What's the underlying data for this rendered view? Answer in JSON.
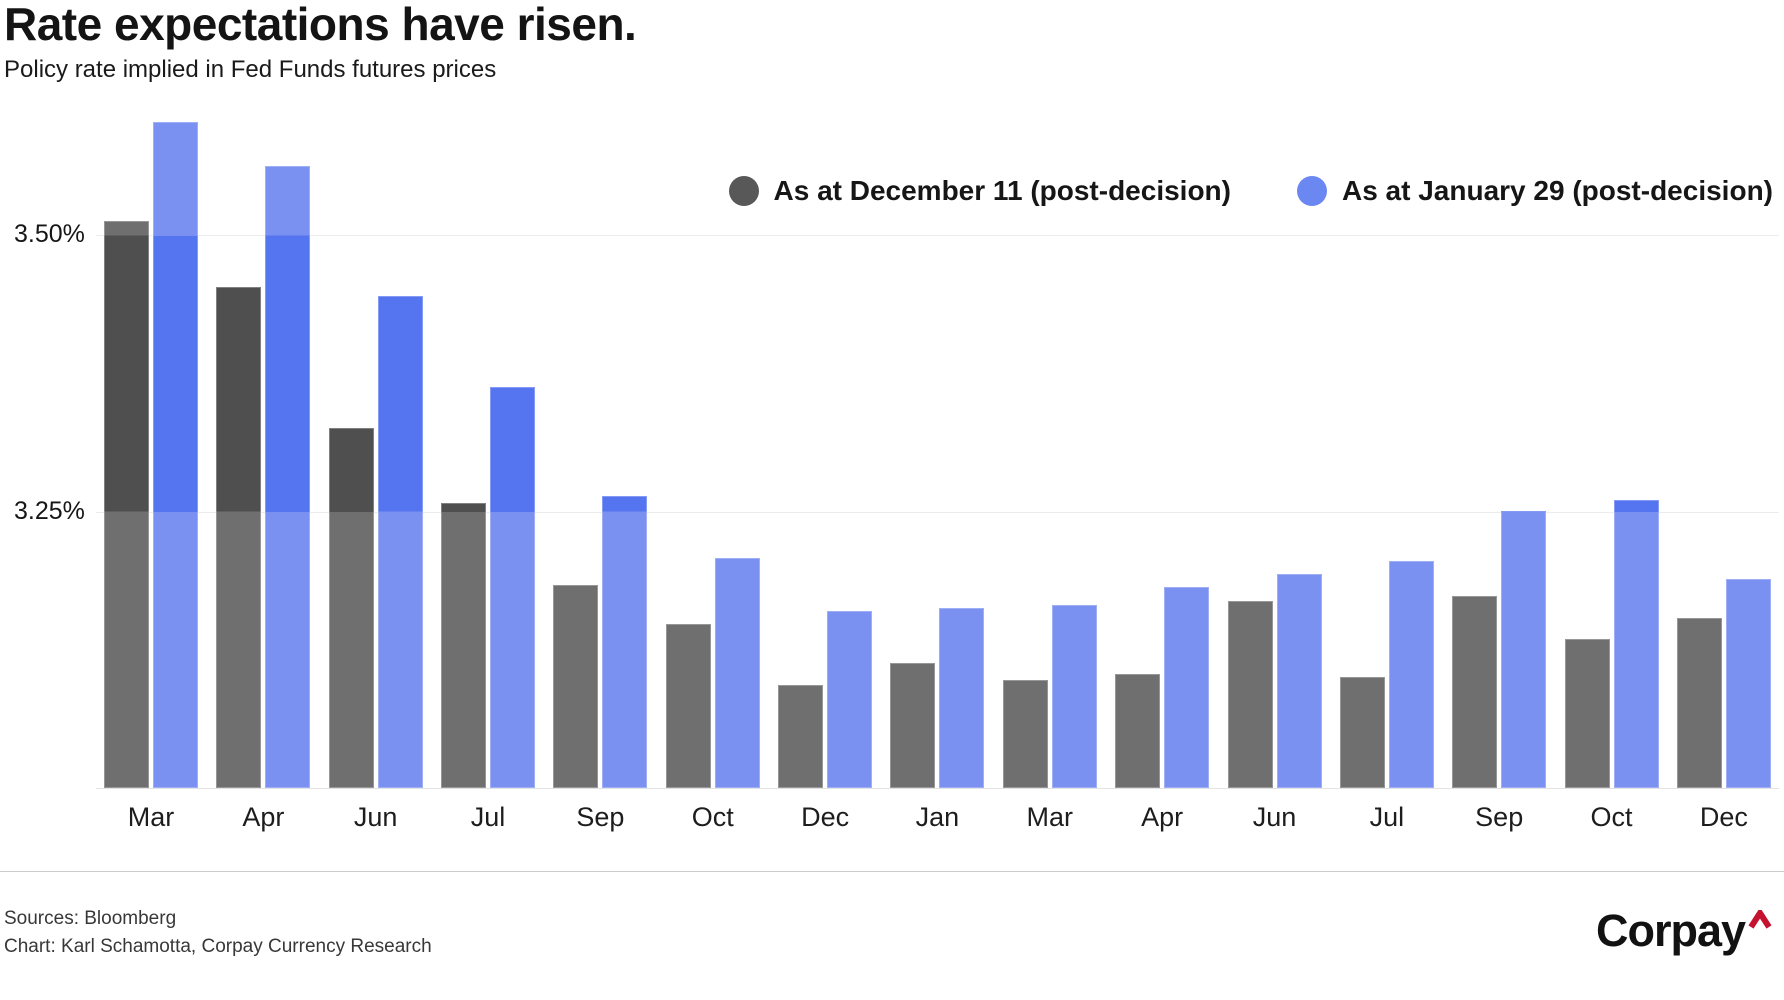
{
  "chart_data": {
    "type": "bar",
    "title": "Rate expectations have risen.",
    "subtitle": "Policy rate implied in Fed Funds futures prices",
    "categories": [
      "Mar",
      "Apr",
      "Jun",
      "Jul",
      "Sep",
      "Oct",
      "Dec",
      "Jan",
      "Mar",
      "Apr",
      "Jun",
      "Jul",
      "Sep",
      "Oct",
      "Dec"
    ],
    "series": [
      {
        "id": "dec11",
        "name": "As at December 11 (post-decision)",
        "values": [
          3.513,
          3.453,
          3.326,
          3.258,
          3.184,
          3.148,
          3.093,
          3.113,
          3.098,
          3.103,
          3.169,
          3.1,
          3.174,
          3.135,
          3.154
        ],
        "color_dark": "#4f4f4f",
        "color_light": "#6f6f6f",
        "legend_color": "#585858"
      },
      {
        "id": "jan29",
        "name": "As at January 29 (post-decision)",
        "values": [
          3.603,
          3.563,
          3.445,
          3.363,
          3.264,
          3.208,
          3.16,
          3.163,
          3.166,
          3.182,
          3.194,
          3.205,
          3.251,
          3.261,
          3.189
        ],
        "color_dark": "#5574ef",
        "color_light": "#7b91f1",
        "legend_color": "#6b87f2"
      }
    ],
    "ylabel": "",
    "xlabel": "",
    "ylim": [
      3.0,
      3.62
    ],
    "y_ticks": [
      {
        "label": "3.50%",
        "value": 3.5
      },
      {
        "label": "3.25%",
        "value": 3.25
      }
    ],
    "highlight_band": [
      3.25,
      3.5
    ],
    "grid": "horizontal",
    "legend_position": "top-right"
  },
  "footer": {
    "sources_line": "Sources: Bloomberg",
    "credit_line": "Chart: Karl Schamotta, Corpay Currency Research",
    "logo_text": "Corpay",
    "logo_caret_color": "#c51230"
  },
  "colors": {
    "background": "#ffffff",
    "gridline": "#ececec",
    "baseline": "#e3e3e3",
    "divider": "#cccccc",
    "title_text": "#141414"
  }
}
